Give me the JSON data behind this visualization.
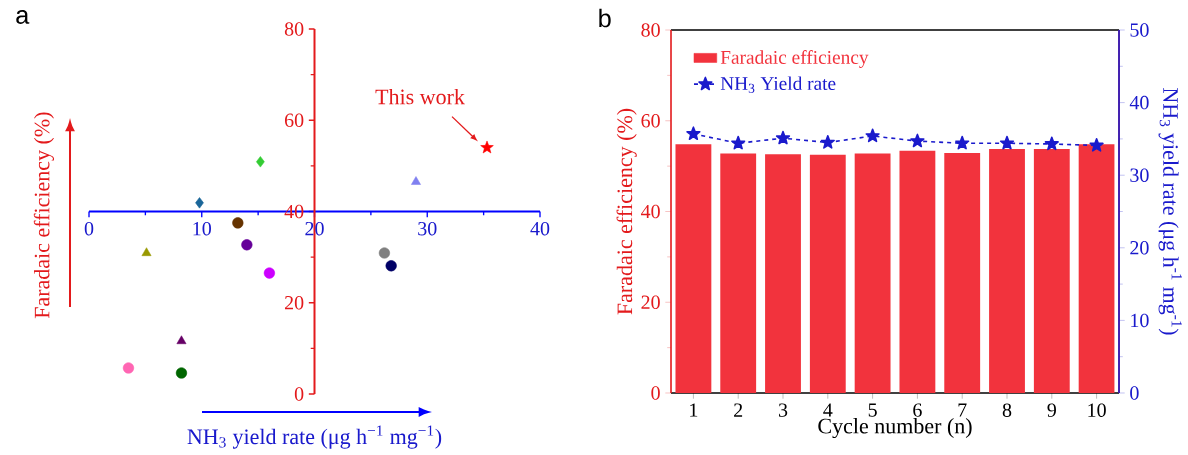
{
  "chart_data": [
    {
      "type": "scatter",
      "title": "a",
      "xlabel": "NH$_{3}$ yield rate (μg h$^{−1}$ mg$^{−1}$)",
      "ylabel": "Faradaic efficiency (%)",
      "xlim": [
        0,
        40
      ],
      "xticks": [
        0,
        10,
        20,
        30,
        40
      ],
      "ylim": [
        0,
        80
      ],
      "yticks": [
        0,
        20,
        40,
        60,
        80
      ],
      "annotations": [
        {
          "text": "This work",
          "x": 35.3,
          "y": 54
        }
      ],
      "series": [
        {
          "color": "#ff0000",
          "marker": "star",
          "x": [
            35.3
          ],
          "values": [
            54
          ]
        },
        {
          "color": "#8080f0",
          "marker": "triangle",
          "x": [
            29.0
          ],
          "values": [
            46.5
          ]
        },
        {
          "color": "#33cc33",
          "marker": "diamond",
          "x": [
            15.2
          ],
          "values": [
            50.9
          ]
        },
        {
          "color": "#1a6699",
          "marker": "diamond",
          "x": [
            9.8
          ],
          "values": [
            41.9
          ]
        },
        {
          "color": "#663300",
          "marker": "circle",
          "x": [
            13.2
          ],
          "values": [
            37.5
          ]
        },
        {
          "color": "#660099",
          "marker": "circle",
          "x": [
            14.0
          ],
          "values": [
            32.7
          ]
        },
        {
          "color": "#999900",
          "marker": "triangle",
          "x": [
            5.1
          ],
          "values": [
            30.9
          ]
        },
        {
          "color": "#cc00ff",
          "marker": "circle",
          "x": [
            16.0
          ],
          "values": [
            26.5
          ]
        },
        {
          "color": "#808080",
          "marker": "circle",
          "x": [
            26.2
          ],
          "values": [
            30.9
          ]
        },
        {
          "color": "#000066",
          "marker": "circle",
          "x": [
            26.8
          ],
          "values": [
            28.1
          ]
        },
        {
          "color": "#660066",
          "marker": "triangle",
          "x": [
            8.2
          ],
          "values": [
            11.6
          ]
        },
        {
          "color": "#ff66b3",
          "marker": "circle",
          "x": [
            3.5
          ],
          "values": [
            5.7
          ]
        },
        {
          "color": "#006600",
          "marker": "circle",
          "x": [
            8.2
          ],
          "values": [
            4.6
          ]
        }
      ]
    },
    {
      "type": "bar",
      "title": "b",
      "xlabel": "Cycle number (n)",
      "ylabel": "Faradaic efficiency (%)",
      "y2label": "NH$_{3}$ yield rate (μg h$^{-1}$ mg$^{-1}$)",
      "categories": [
        "1",
        "2",
        "3",
        "4",
        "5",
        "6",
        "7",
        "8",
        "9",
        "10"
      ],
      "ylim": [
        0,
        80
      ],
      "yticks": [
        0,
        20,
        40,
        60,
        80
      ],
      "y2lim": [
        0,
        50
      ],
      "y2ticks": [
        0,
        10,
        20,
        30,
        40,
        50
      ],
      "legend": "top left",
      "series": [
        {
          "name": "Faradaic efficiency",
          "color": "#f2333d",
          "values": [
            54.8,
            52.8,
            52.6,
            52.5,
            52.8,
            53.4,
            52.9,
            53.8,
            53.8,
            54.8
          ]
        },
        {
          "name": "NH$_{3}$ Yield rate",
          "type": "line",
          "axis": "y2",
          "color": "#1a1acc",
          "marker": "star",
          "line_style": "dashed",
          "values": [
            35.7,
            34.4,
            35.1,
            34.5,
            35.4,
            34.7,
            34.4,
            34.4,
            34.3,
            34.1
          ]
        }
      ]
    }
  ]
}
